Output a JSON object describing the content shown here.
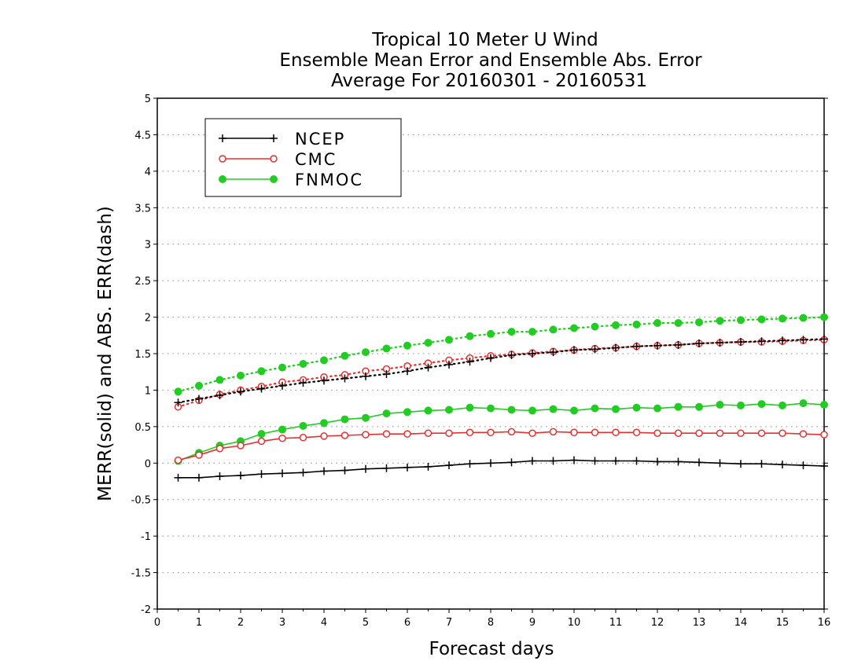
{
  "chart_data": {
    "type": "line",
    "title": [
      "Tropical 10 Meter U Wind",
      "Ensemble Mean Error and Ensemble Abs. Error",
      "Average For 20160301 - 20160531"
    ],
    "xlabel": "Forecast days",
    "ylabel": "MERR(solid) and ABS. ERR(dash)",
    "xlim": [
      0,
      16
    ],
    "ylim": [
      -2,
      5
    ],
    "xticks": [
      "0",
      "1",
      "2",
      "3",
      "4",
      "5",
      "6",
      "7",
      "8",
      "9",
      "10",
      "11",
      "12",
      "13",
      "14",
      "15",
      "16"
    ],
    "yticks": [
      "-2",
      "-1.5",
      "-1",
      "-0.5",
      "0",
      "0.5",
      "1",
      "1.5",
      "2",
      "2.5",
      "3",
      "3.5",
      "4",
      "4.5",
      "5"
    ],
    "grid": "horizontal dotted",
    "legend_position": "top-left",
    "x": [
      0.5,
      1,
      1.5,
      2,
      2.5,
      3,
      3.5,
      4,
      4.5,
      5,
      5.5,
      6,
      6.5,
      7,
      7.5,
      8,
      8.5,
      9,
      9.5,
      10,
      10.5,
      11,
      11.5,
      12,
      12.5,
      13,
      13.5,
      14,
      14.5,
      15,
      15.5,
      16
    ],
    "series": [
      {
        "name": "NCEP",
        "color": "#000000",
        "marker": "plus",
        "merr": [
          -0.2,
          -0.2,
          -0.18,
          -0.17,
          -0.15,
          -0.14,
          -0.13,
          -0.11,
          -0.1,
          -0.08,
          -0.07,
          -0.06,
          -0.05,
          -0.03,
          -0.01,
          0,
          0.01,
          0.03,
          0.03,
          0.04,
          0.03,
          0.03,
          0.03,
          0.02,
          0.02,
          0.01,
          0,
          -0.01,
          -0.01,
          -0.02,
          -0.03,
          -0.04
        ],
        "abs_err": [
          0.83,
          0.88,
          0.93,
          0.98,
          1.02,
          1.06,
          1.1,
          1.13,
          1.16,
          1.19,
          1.22,
          1.26,
          1.31,
          1.35,
          1.39,
          1.44,
          1.48,
          1.5,
          1.52,
          1.55,
          1.56,
          1.58,
          1.6,
          1.61,
          1.62,
          1.64,
          1.65,
          1.66,
          1.67,
          1.68,
          1.69,
          1.7
        ]
      },
      {
        "name": "CMC",
        "color": "#e83030",
        "marker": "open-circle",
        "merr": [
          0.04,
          0.11,
          0.2,
          0.24,
          0.3,
          0.34,
          0.35,
          0.37,
          0.38,
          0.39,
          0.4,
          0.4,
          0.41,
          0.41,
          0.42,
          0.42,
          0.43,
          0.41,
          0.43,
          0.42,
          0.42,
          0.42,
          0.42,
          0.41,
          0.41,
          0.41,
          0.41,
          0.41,
          0.41,
          0.41,
          0.4,
          0.39
        ],
        "abs_err": [
          0.77,
          0.86,
          0.94,
          1.0,
          1.05,
          1.11,
          1.14,
          1.18,
          1.21,
          1.26,
          1.29,
          1.33,
          1.37,
          1.41,
          1.44,
          1.47,
          1.49,
          1.51,
          1.53,
          1.55,
          1.57,
          1.58,
          1.6,
          1.61,
          1.62,
          1.64,
          1.65,
          1.66,
          1.66,
          1.67,
          1.68,
          1.69
        ]
      },
      {
        "name": "FNMOC",
        "color": "#22cc22",
        "marker": "filled-circle",
        "merr": [
          0.03,
          0.14,
          0.24,
          0.3,
          0.4,
          0.46,
          0.51,
          0.55,
          0.6,
          0.62,
          0.68,
          0.7,
          0.72,
          0.73,
          0.76,
          0.75,
          0.73,
          0.72,
          0.74,
          0.72,
          0.75,
          0.74,
          0.76,
          0.75,
          0.77,
          0.77,
          0.8,
          0.79,
          0.81,
          0.79,
          0.82,
          0.8
        ],
        "abs_err": [
          0.98,
          1.06,
          1.14,
          1.2,
          1.26,
          1.31,
          1.36,
          1.41,
          1.47,
          1.52,
          1.57,
          1.61,
          1.65,
          1.69,
          1.74,
          1.77,
          1.8,
          1.8,
          1.83,
          1.85,
          1.87,
          1.89,
          1.9,
          1.92,
          1.92,
          1.93,
          1.95,
          1.96,
          1.97,
          1.98,
          1.99,
          2.0
        ]
      }
    ]
  }
}
